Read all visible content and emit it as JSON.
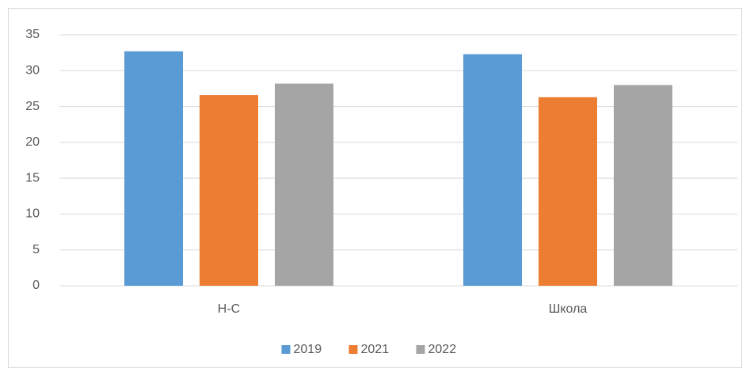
{
  "chart_data": {
    "type": "bar",
    "categories": [
      "Н-С",
      "Школа"
    ],
    "series": [
      {
        "name": "2019",
        "color": "#5b9bd5",
        "values": [
          32.7,
          32.3
        ]
      },
      {
        "name": "2021",
        "color": "#ed7d31",
        "values": [
          26.6,
          26.3
        ]
      },
      {
        "name": "2022",
        "color": "#a5a5a5",
        "values": [
          28.2,
          28.0
        ]
      }
    ],
    "ylim": [
      0,
      35
    ],
    "yticks": [
      0,
      5,
      10,
      15,
      20,
      25,
      30,
      35
    ],
    "grid": true,
    "legend": "bottom"
  }
}
